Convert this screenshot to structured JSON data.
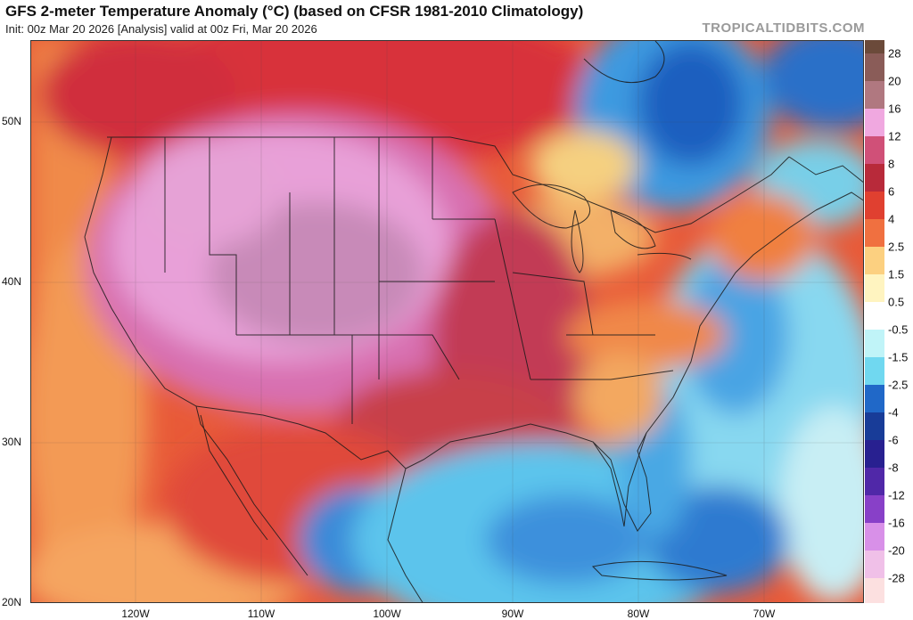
{
  "header": {
    "title": "GFS 2-meter Temperature Anomaly (°C) (based on CFSR 1981-2010 Climatology)",
    "subtitle": "Init: 00z Mar 20 2026   [Analysis]   valid at 00z Fri, Mar 20 2026",
    "credit": "TROPICALTIDBITS.COM"
  },
  "map": {
    "lat_labels": [
      "50N",
      "40N",
      "30N",
      "20N"
    ],
    "lon_labels": [
      "120W",
      "110W",
      "100W",
      "90W",
      "80W",
      "70W"
    ]
  },
  "colorbar": {
    "labels": [
      "28",
      "20",
      "16",
      "12",
      "8",
      "6",
      "4",
      "2.5",
      "1.5",
      "0.5",
      "-0.5",
      "-1.5",
      "-2.5",
      "-4",
      "-6",
      "-8",
      "-12",
      "-16",
      "-20",
      "-28"
    ],
    "colors": [
      "#6b4a3a",
      "#8a5c58",
      "#b07880",
      "#d890c0",
      "#f0a8e0",
      "#d05078",
      "#b82a3a",
      "#e04030",
      "#f07040",
      "#f8a050",
      "#fcd080",
      "#fff4c0",
      "#ffffff",
      "#c0f4f8",
      "#70d8f0",
      "#40a8e8",
      "#2068c8",
      "#183c98",
      "#282090",
      "#5028a8",
      "#8840c8",
      "#b060d8",
      "#d890e8",
      "#f0c0e8",
      "#fce0e0"
    ]
  }
}
